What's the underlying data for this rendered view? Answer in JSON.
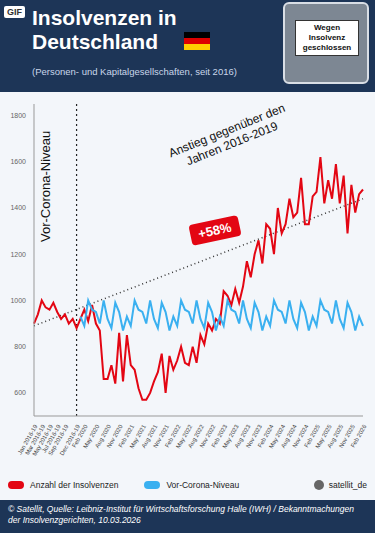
{
  "badge": "GIF",
  "header": {
    "title": "Insolvenzen in Deutschland",
    "subtitle": "(Personen- und Kapitalgesellschaften, seit 2016)",
    "sign": "Wegen Insolvenz geschlossen"
  },
  "chart_data": {
    "type": "line",
    "categories": [
      "Jan 2016-19",
      null,
      "Mar 2016-19",
      null,
      "May 2016-19",
      null,
      "Jul 2016-19",
      null,
      "Sep 2016-19",
      null,
      null,
      "Dec 2016-19",
      null,
      "Feb 2020",
      null,
      null,
      "May 2020",
      null,
      null,
      "Aug 2020",
      null,
      null,
      "Nov 2020",
      null,
      null,
      "Feb 2021",
      null,
      null,
      "May 2021",
      null,
      null,
      "Aug 2021",
      null,
      null,
      "Nov 2021",
      null,
      null,
      "Feb 2022",
      null,
      null,
      "May 2022",
      null,
      null,
      "Aug 2022",
      null,
      null,
      "Nov 2022",
      null,
      null,
      "Feb 2023",
      null,
      null,
      "May 2023",
      null,
      null,
      "Aug 2023",
      null,
      null,
      "Nov 2023",
      null,
      null,
      "Feb 2024",
      null,
      null,
      "May 2024",
      null,
      null,
      "Aug 2024",
      null,
      null,
      "Nov 2024",
      null,
      null,
      "Feb 2025",
      null,
      null,
      "May 2025",
      null,
      null,
      "Aug 2025",
      null,
      null,
      "Nov 2025",
      null,
      null,
      "Feb 2026"
    ],
    "series": [
      {
        "name": "Anzahl der Insolvenzen",
        "color": "#e30613",
        "line_style": "solid",
        "marker": "none",
        "values": [
          900,
          940,
          1000,
          970,
          960,
          990,
          950,
          920,
          940,
          900,
          920,
          880,
          920,
          960,
          910,
          980,
          900,
          870,
          660,
          660,
          720,
          640,
          860,
          650,
          850,
          720,
          700,
          620,
          570,
          570,
          600,
          650,
          690,
          770,
          600,
          760,
          700,
          740,
          800,
          730,
          720,
          800,
          730,
          850,
          810,
          900,
          870,
          920,
          900,
          1040,
          1020,
          980,
          1050,
          990,
          1060,
          1170,
          1100,
          1200,
          1260,
          1160,
          1330,
          1310,
          1200,
          1400,
          1290,
          1330,
          1440,
          1360,
          1380,
          1530,
          1330,
          1330,
          1450,
          1470,
          1620,
          1420,
          1520,
          1440,
          1590,
          1420,
          1540,
          1290,
          1500,
          1380,
          1460,
          1480
        ]
      },
      {
        "name": "Vor-Corona-Niveau",
        "color": "#3ab0f0",
        "line_style": "solid",
        "marker": "none",
        "values": [
          null,
          null,
          null,
          null,
          null,
          null,
          null,
          null,
          null,
          null,
          null,
          null,
          930,
          890,
          1000,
          960,
          950,
          900,
          1000,
          920,
          880,
          990,
          950,
          870,
          930,
          890,
          1000,
          960,
          950,
          900,
          1000,
          920,
          880,
          990,
          950,
          870,
          930,
          890,
          1000,
          960,
          950,
          900,
          1000,
          920,
          880,
          990,
          950,
          870,
          930,
          890,
          1000,
          960,
          950,
          900,
          1000,
          920,
          880,
          990,
          950,
          870,
          930,
          890,
          1000,
          960,
          950,
          900,
          1000,
          920,
          880,
          990,
          950,
          870,
          930,
          890,
          1000,
          960,
          950,
          900,
          1000,
          920,
          880,
          990,
          950,
          870,
          930,
          890
        ]
      }
    ],
    "ylim": [
      500,
      1850
    ],
    "yticks": [
      600,
      800,
      1000,
      1200,
      1400,
      1600,
      1800
    ],
    "grid": false,
    "legend": "bottom",
    "divider": {
      "text": "Vor-Corona-Niveau",
      "x": "Dec 2016-19"
    },
    "trend": {
      "from": "Jan 2016-19",
      "to": "Feb 2026",
      "values": [
        890,
        1440
      ]
    },
    "annotations": [
      {
        "text": "Anstieg gegenüber den Jahren 2016-2019"
      },
      {
        "text": "+58%",
        "color": "#e30613"
      }
    ]
  },
  "source_handle": "satellit_de",
  "footer": "© Satellit, Quelle: Leibniz-Institut für Wirtschaftsforschung Halle (IWH) / Bekanntmachungen der Insolvenzgerichten, 10.03.2026"
}
